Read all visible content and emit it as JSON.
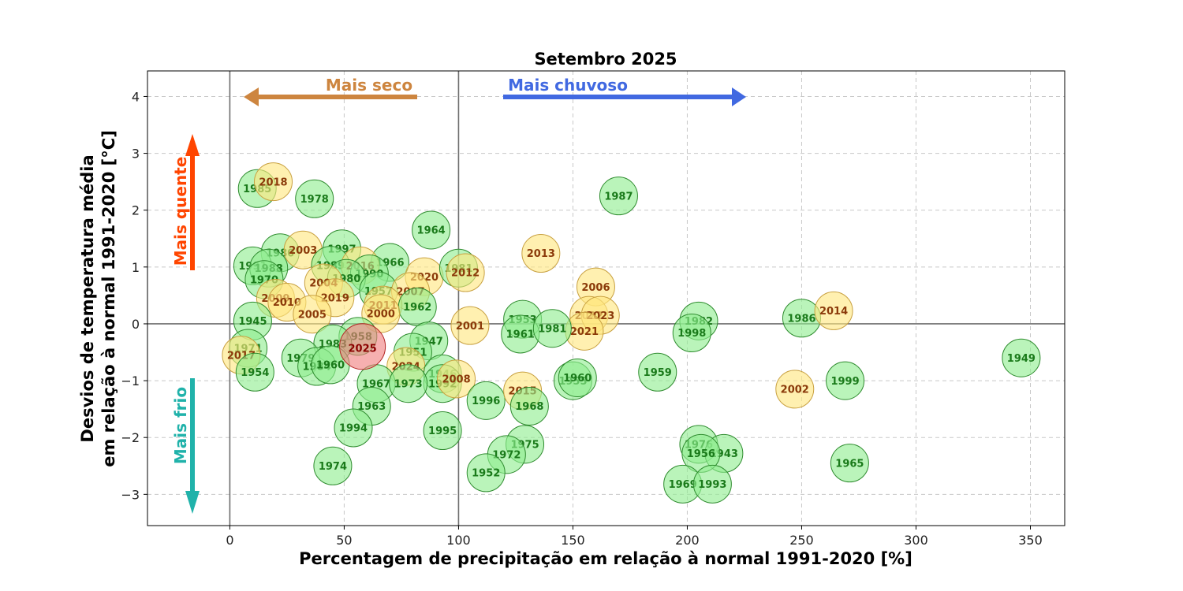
{
  "chart_data": {
    "type": "scatter",
    "title": "Setembro 2025",
    "xlabel": "Percentagem de precipitação em relação à normal 1991-2020 [%]",
    "ylabel_line1": "Desvios de temperatura média",
    "ylabel_line2": "em relação à normal 1991-2020 [°C]",
    "xlim": [
      -36,
      365
    ],
    "ylim": [
      -3.55,
      4.45
    ],
    "xticks": [
      0,
      50,
      100,
      150,
      200,
      250,
      300,
      350
    ],
    "yticks": [
      -3,
      -2,
      -1,
      0,
      1,
      2,
      3,
      4
    ],
    "xtick_labels": [
      "0",
      "50",
      "100",
      "150",
      "200",
      "250",
      "300",
      "350"
    ],
    "ytick_labels": [
      "−3",
      "−2",
      "−1",
      "0",
      "1",
      "2",
      "3",
      "4"
    ],
    "grid": true,
    "reference_lines": {
      "x": [
        0,
        100
      ],
      "y": [
        0
      ]
    },
    "colors": {
      "normal_fill": "#90ee90",
      "normal_edge": "#2e8b2e",
      "normal_text": "#1a7a1a",
      "recent_fill": "#ffe680",
      "recent_edge": "#c8a040",
      "recent_text": "#8b3a0a",
      "current_fill": "#f08080",
      "current_edge": "#b22222",
      "current_text": "#8b0000"
    },
    "annotations": {
      "drier": {
        "label": "Mais seco",
        "color": "#cd853f"
      },
      "wetter": {
        "label": "Mais chuvoso",
        "color": "#4169e1"
      },
      "warmer": {
        "label": "Mais quente",
        "color": "#ff4500"
      },
      "colder": {
        "label": "Mais frio",
        "color": "#20b2aa"
      }
    },
    "points": [
      {
        "year": "1985",
        "x": 12,
        "y": 2.38,
        "group": "normal"
      },
      {
        "year": "2018",
        "x": 19,
        "y": 2.5,
        "group": "recent"
      },
      {
        "year": "1978",
        "x": 37,
        "y": 2.2,
        "group": "normal"
      },
      {
        "year": "1964",
        "x": 88,
        "y": 1.65,
        "group": "normal"
      },
      {
        "year": "1987",
        "x": 170,
        "y": 2.25,
        "group": "normal"
      },
      {
        "year": "1980",
        "x": 22,
        "y": 1.25,
        "group": "normal"
      },
      {
        "year": "2003",
        "x": 32,
        "y": 1.3,
        "group": "recent"
      },
      {
        "year": "1997",
        "x": 49,
        "y": 1.32,
        "group": "normal"
      },
      {
        "year": "1966",
        "x": 70,
        "y": 1.08,
        "group": "normal"
      },
      {
        "year": "1991",
        "x": 10,
        "y": 1.02,
        "group": "normal"
      },
      {
        "year": "1988",
        "x": 17,
        "y": 0.98,
        "group": "normal"
      },
      {
        "year": "1970",
        "x": 15,
        "y": 0.78,
        "group": "normal"
      },
      {
        "year": "1989",
        "x": 44,
        "y": 1.03,
        "group": "normal"
      },
      {
        "year": "2016",
        "x": 57,
        "y": 1.02,
        "group": "recent"
      },
      {
        "year": "1990",
        "x": 61,
        "y": 0.88,
        "group": "normal"
      },
      {
        "year": "1980",
        "x": 51,
        "y": 0.8,
        "group": "normal"
      },
      {
        "year": "2004",
        "x": 41,
        "y": 0.72,
        "group": "recent"
      },
      {
        "year": "2020",
        "x": 85,
        "y": 0.83,
        "group": "recent"
      },
      {
        "year": "1981",
        "x": 100,
        "y": 0.98,
        "group": "normal"
      },
      {
        "year": "2012",
        "x": 103,
        "y": 0.9,
        "group": "recent"
      },
      {
        "year": "2013",
        "x": 136,
        "y": 1.24,
        "group": "recent"
      },
      {
        "year": "1957",
        "x": 65,
        "y": 0.58,
        "group": "normal"
      },
      {
        "year": "2007",
        "x": 79,
        "y": 0.57,
        "group": "recent"
      },
      {
        "year": "2019",
        "x": 46,
        "y": 0.46,
        "group": "recent"
      },
      {
        "year": "2009",
        "x": 20,
        "y": 0.45,
        "group": "recent"
      },
      {
        "year": "2010",
        "x": 25,
        "y": 0.38,
        "group": "recent"
      },
      {
        "year": "2011",
        "x": 67,
        "y": 0.33,
        "group": "recent"
      },
      {
        "year": "1962",
        "x": 82,
        "y": 0.3,
        "group": "normal"
      },
      {
        "year": "2000",
        "x": 66,
        "y": 0.18,
        "group": "recent"
      },
      {
        "year": "2005",
        "x": 36,
        "y": 0.17,
        "group": "recent"
      },
      {
        "year": "2006",
        "x": 160,
        "y": 0.65,
        "group": "recent"
      },
      {
        "year": "2022",
        "x": 157,
        "y": 0.15,
        "group": "recent"
      },
      {
        "year": "2023",
        "x": 162,
        "y": 0.15,
        "group": "recent"
      },
      {
        "year": "2021",
        "x": 155,
        "y": -0.13,
        "group": "recent"
      },
      {
        "year": "1945",
        "x": 10,
        "y": 0.05,
        "group": "normal"
      },
      {
        "year": "1953",
        "x": 128,
        "y": 0.08,
        "group": "normal"
      },
      {
        "year": "1961",
        "x": 127,
        "y": -0.18,
        "group": "normal"
      },
      {
        "year": "1981",
        "x": 141,
        "y": -0.08,
        "group": "normal"
      },
      {
        "year": "2001",
        "x": 105,
        "y": -0.03,
        "group": "recent"
      },
      {
        "year": "1982",
        "x": 205,
        "y": 0.05,
        "group": "normal"
      },
      {
        "year": "1998",
        "x": 202,
        "y": -0.16,
        "group": "normal"
      },
      {
        "year": "1986",
        "x": 250,
        "y": 0.1,
        "group": "normal"
      },
      {
        "year": "2014",
        "x": 264,
        "y": 0.23,
        "group": "recent"
      },
      {
        "year": "1958",
        "x": 56,
        "y": -0.22,
        "group": "normal"
      },
      {
        "year": "1947",
        "x": 87,
        "y": -0.3,
        "group": "normal"
      },
      {
        "year": "1983",
        "x": 45,
        "y": -0.35,
        "group": "normal"
      },
      {
        "year": "2025",
        "x": 58,
        "y": -0.4,
        "group": "current"
      },
      {
        "year": "1971",
        "x": 8,
        "y": -0.43,
        "group": "normal"
      },
      {
        "year": "2017",
        "x": 5,
        "y": -0.55,
        "group": "recent"
      },
      {
        "year": "1951",
        "x": 80,
        "y": -0.5,
        "group": "normal"
      },
      {
        "year": "1979",
        "x": 31,
        "y": -0.6,
        "group": "normal"
      },
      {
        "year": "1984",
        "x": 38,
        "y": -0.75,
        "group": "normal"
      },
      {
        "year": "1960",
        "x": 44,
        "y": -0.72,
        "group": "normal"
      },
      {
        "year": "1954",
        "x": 11,
        "y": -0.85,
        "group": "normal"
      },
      {
        "year": "2024",
        "x": 77,
        "y": -0.75,
        "group": "recent"
      },
      {
        "year": "1946",
        "x": 93,
        "y": -0.88,
        "group": "normal"
      },
      {
        "year": "1992",
        "x": 93,
        "y": -1.05,
        "group": "normal"
      },
      {
        "year": "2008",
        "x": 99,
        "y": -0.97,
        "group": "recent"
      },
      {
        "year": "1967",
        "x": 64,
        "y": -1.05,
        "group": "normal"
      },
      {
        "year": "1973",
        "x": 78,
        "y": -1.05,
        "group": "normal"
      },
      {
        "year": "1963",
        "x": 62,
        "y": -1.45,
        "group": "normal"
      },
      {
        "year": "1996",
        "x": 112,
        "y": -1.35,
        "group": "normal"
      },
      {
        "year": "2015",
        "x": 128,
        "y": -1.18,
        "group": "recent"
      },
      {
        "year": "1968",
        "x": 131,
        "y": -1.45,
        "group": "normal"
      },
      {
        "year": "1955",
        "x": 150,
        "y": -1.0,
        "group": "normal"
      },
      {
        "year": "1960",
        "x": 152,
        "y": -0.95,
        "group": "normal"
      },
      {
        "year": "1959",
        "x": 187,
        "y": -0.85,
        "group": "normal"
      },
      {
        "year": "2002",
        "x": 247,
        "y": -1.15,
        "group": "recent"
      },
      {
        "year": "1999",
        "x": 269,
        "y": -1.0,
        "group": "normal"
      },
      {
        "year": "1949",
        "x": 346,
        "y": -0.6,
        "group": "normal"
      },
      {
        "year": "1994",
        "x": 54,
        "y": -1.83,
        "group": "normal"
      },
      {
        "year": "1995",
        "x": 93,
        "y": -1.88,
        "group": "normal"
      },
      {
        "year": "1975",
        "x": 129,
        "y": -2.12,
        "group": "normal"
      },
      {
        "year": "1972",
        "x": 121,
        "y": -2.3,
        "group": "normal"
      },
      {
        "year": "1952",
        "x": 112,
        "y": -2.62,
        "group": "normal"
      },
      {
        "year": "1974",
        "x": 45,
        "y": -2.5,
        "group": "normal"
      },
      {
        "year": "1976",
        "x": 205,
        "y": -2.12,
        "group": "normal"
      },
      {
        "year": "1943",
        "x": 216,
        "y": -2.28,
        "group": "normal"
      },
      {
        "year": "1956",
        "x": 206,
        "y": -2.28,
        "group": "normal"
      },
      {
        "year": "1969",
        "x": 198,
        "y": -2.82,
        "group": "normal"
      },
      {
        "year": "1993",
        "x": 211,
        "y": -2.82,
        "group": "normal"
      },
      {
        "year": "1965",
        "x": 271,
        "y": -2.45,
        "group": "normal"
      }
    ]
  }
}
